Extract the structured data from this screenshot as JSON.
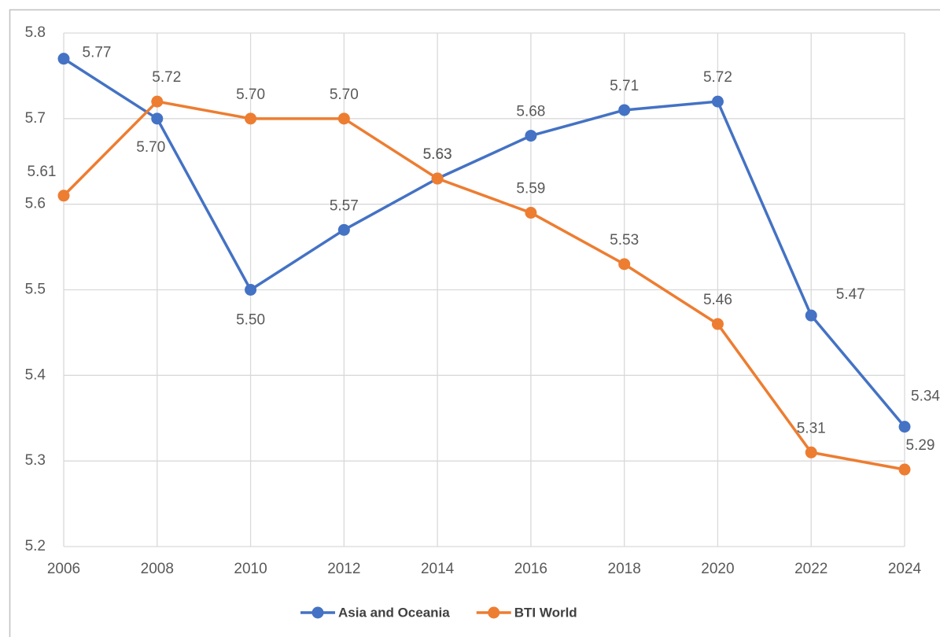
{
  "chart_data": {
    "type": "line",
    "x": [
      2006,
      2008,
      2010,
      2012,
      2014,
      2016,
      2018,
      2020,
      2022,
      2024
    ],
    "xlim": [
      2006,
      2024
    ],
    "xticks": [
      2006,
      2008,
      2010,
      2012,
      2014,
      2016,
      2018,
      2020,
      2022,
      2024
    ],
    "ylim": [
      5.2,
      5.8
    ],
    "yticks": [
      5.2,
      5.3,
      5.4,
      5.5,
      5.6,
      5.7,
      5.8
    ],
    "grid": true,
    "legend": "bottom",
    "series": [
      {
        "name": "Asia and Oceania",
        "color": "#4472c4",
        "values": [
          5.77,
          5.7,
          5.5,
          5.57,
          5.63,
          5.68,
          5.71,
          5.72,
          5.47,
          5.34
        ],
        "value_labels": [
          "5.77",
          "5.70",
          "5.50",
          "5.57",
          "5.63",
          "5.68",
          "5.71",
          "5.72",
          "5.47",
          "5.34"
        ]
      },
      {
        "name": "BTI World",
        "color": "#ed7d31",
        "values": [
          5.61,
          5.72,
          5.7,
          5.7,
          5.63,
          5.59,
          5.53,
          5.46,
          5.31,
          5.29
        ],
        "value_labels": [
          "5.61",
          "5.72",
          "5.70",
          "5.70",
          "5.63",
          "5.59",
          "5.53",
          "5.46",
          "5.31",
          "5.29"
        ]
      }
    ]
  }
}
